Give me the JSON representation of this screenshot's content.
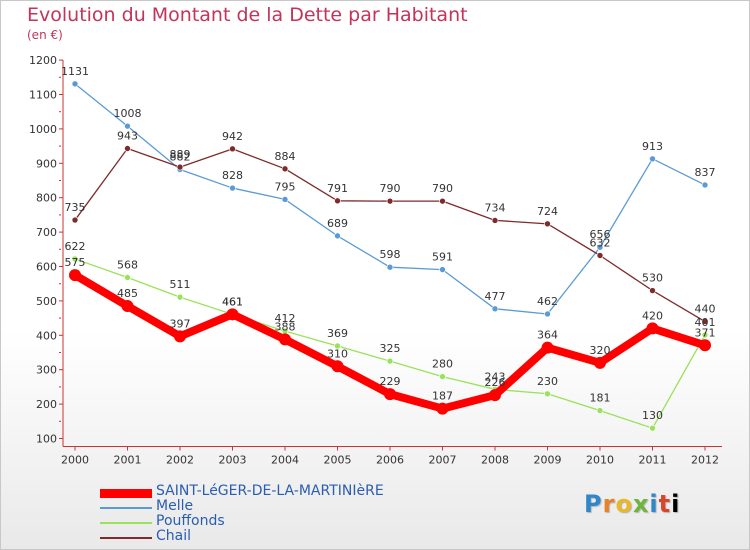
{
  "chart_data": {
    "type": "line",
    "title": "Evolution du Montant de la Dette par Habitant",
    "subtitle": "(en €)",
    "x": [
      "2000",
      "2001",
      "2002",
      "2003",
      "2004",
      "2005",
      "2006",
      "2007",
      "2008",
      "2009",
      "2010",
      "2011",
      "2012"
    ],
    "ylim": [
      100,
      1200
    ],
    "yticks": [
      100,
      200,
      300,
      400,
      500,
      600,
      700,
      800,
      900,
      1000,
      1100,
      1200
    ],
    "grid": false,
    "legend_position": "bottom-left",
    "series": [
      {
        "name": "SAINT-LéGER-DE-LA-MARTINIèRE",
        "color": "#ff0000",
        "values": [
          575,
          485,
          397,
          461,
          388,
          310,
          229,
          187,
          226,
          364,
          320,
          420,
          371
        ]
      },
      {
        "name": "Melle",
        "color": "#5b9bd5",
        "values": [
          1131,
          1008,
          882,
          828,
          795,
          689,
          598,
          591,
          477,
          462,
          656,
          913,
          837
        ]
      },
      {
        "name": "Pouffonds",
        "color": "#99e25a",
        "values": [
          622,
          568,
          511,
          461,
          412,
          369,
          325,
          280,
          243,
          230,
          181,
          130,
          401
        ]
      },
      {
        "name": "Chail",
        "color": "#7d2b2b",
        "values": [
          735,
          943,
          889,
          942,
          884,
          791,
          790,
          790,
          734,
          724,
          632,
          530,
          440
        ]
      }
    ]
  },
  "logo": {
    "letters": [
      "P",
      "r",
      "o",
      "x",
      "i",
      "t",
      "i"
    ]
  }
}
